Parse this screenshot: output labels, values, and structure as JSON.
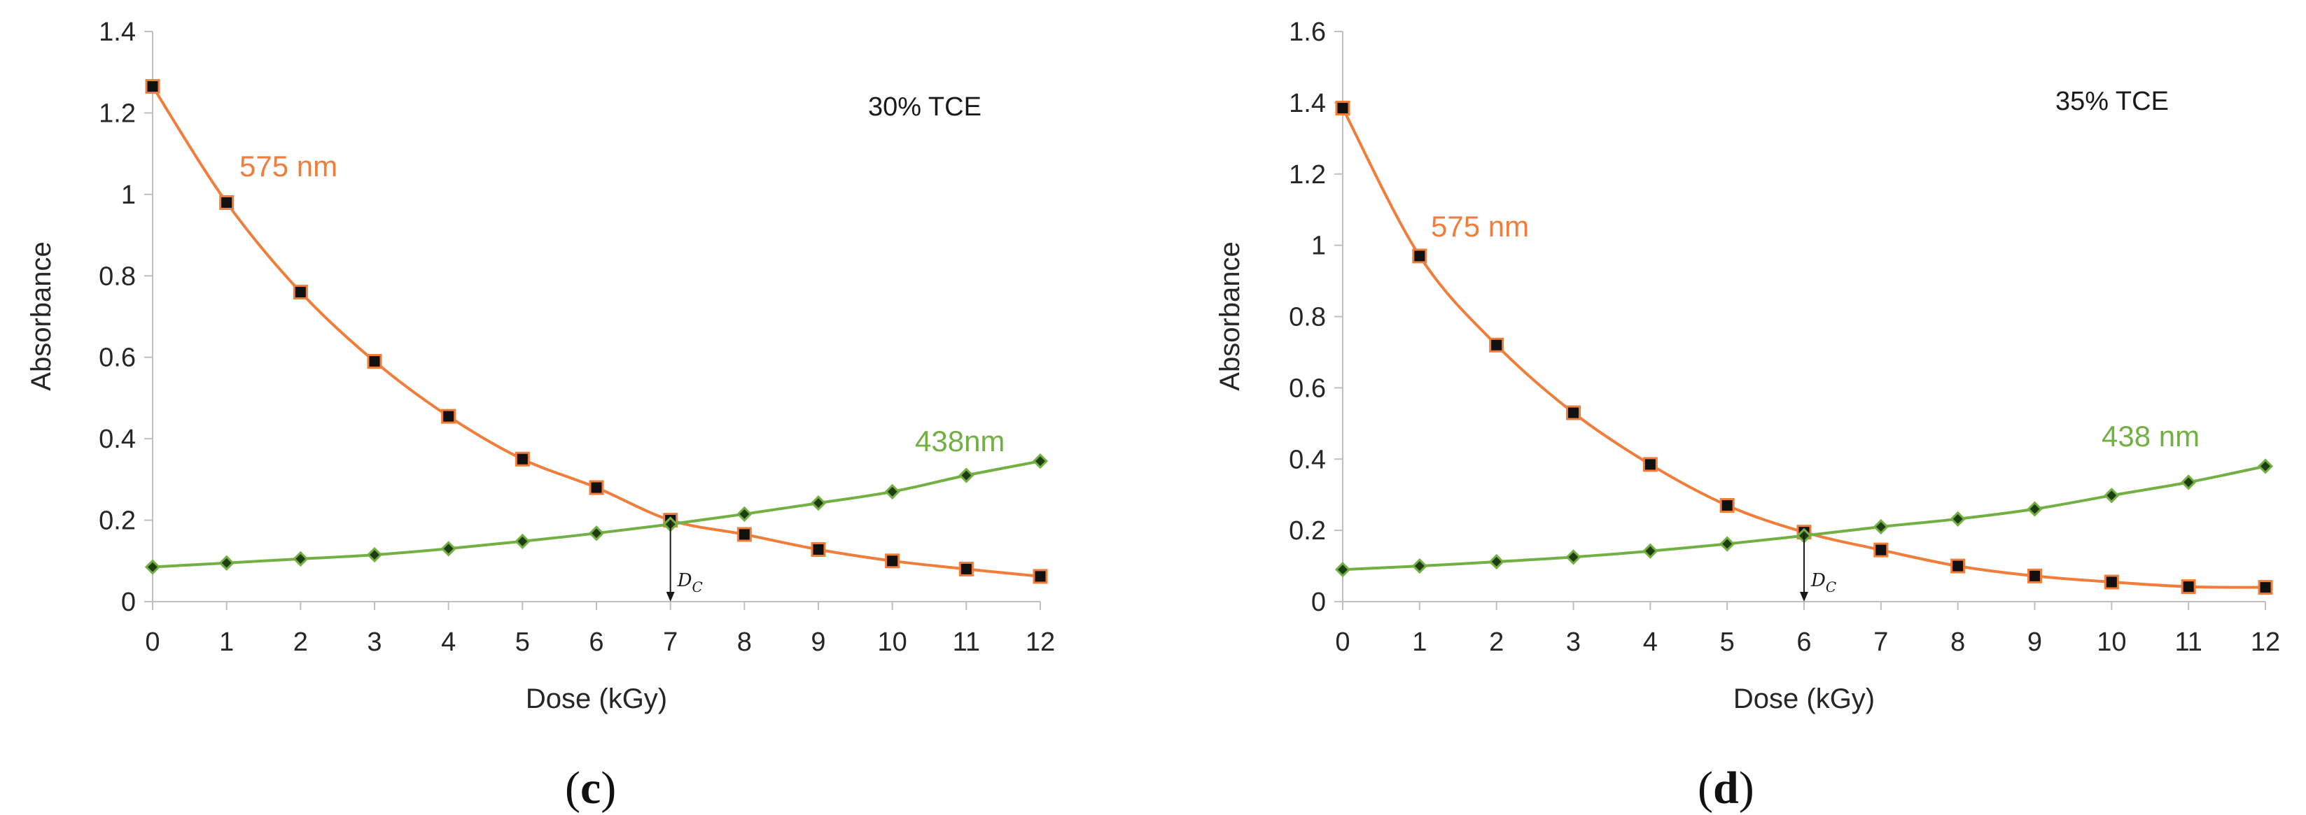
{
  "chart_data": [
    {
      "type": "line",
      "panel_label": "c",
      "annotation": "30% TCE",
      "xlabel": "Dose (kGy)",
      "ylabel": "Absorbance",
      "xlim": [
        0,
        12
      ],
      "ylim": [
        0,
        1.4
      ],
      "x_ticks": [
        0,
        1,
        2,
        3,
        4,
        5,
        6,
        7,
        8,
        9,
        10,
        11,
        12
      ],
      "y_ticks": [
        0,
        0.2,
        0.4,
        0.6,
        0.8,
        1,
        1.2,
        1.4
      ],
      "x_tick_labels": [
        "0",
        "1",
        "2",
        "3",
        "4",
        "5",
        "6",
        "7",
        "8",
        "9",
        "10",
        "11",
        "12"
      ],
      "y_tick_labels": [
        "0",
        "0.2",
        "0.4",
        "0.6",
        "0.8",
        "1",
        "1.2",
        "1.4"
      ],
      "grid": false,
      "x": [
        0,
        1,
        2,
        3,
        4,
        5,
        6,
        7,
        8,
        9,
        10,
        11,
        12
      ],
      "series": [
        {
          "name": "575 nm",
          "label": "575 nm",
          "color": "#f07d3a",
          "marker": "square",
          "values": [
            1.265,
            0.98,
            0.76,
            0.59,
            0.455,
            0.35,
            0.28,
            0.2,
            0.165,
            0.128,
            0.1,
            0.08,
            0.062
          ]
        },
        {
          "name": "438nm",
          "label": "438nm",
          "color": "#72b043",
          "marker": "diamond",
          "values": [
            0.085,
            0.095,
            0.105,
            0.115,
            0.13,
            0.148,
            0.168,
            0.19,
            0.215,
            0.242,
            0.27,
            0.31,
            0.345
          ]
        }
      ],
      "crossover": {
        "label_main": "D",
        "label_sub": "C",
        "x": 7,
        "y": 0.2
      }
    },
    {
      "type": "line",
      "panel_label": "d",
      "annotation": "35% TCE",
      "xlabel": "Dose (kGy)",
      "ylabel": "Absorbance",
      "xlim": [
        0,
        12
      ],
      "ylim": [
        0,
        1.6
      ],
      "x_ticks": [
        0,
        1,
        2,
        3,
        4,
        5,
        6,
        7,
        8,
        9,
        10,
        11,
        12
      ],
      "y_ticks": [
        0,
        0.2,
        0.4,
        0.6,
        0.8,
        1,
        1.2,
        1.4,
        1.6
      ],
      "x_tick_labels": [
        "0",
        "1",
        "2",
        "3",
        "4",
        "5",
        "6",
        "7",
        "8",
        "9",
        "10",
        "11",
        "12"
      ],
      "y_tick_labels": [
        "0",
        "0.2",
        "0.4",
        "0.6",
        "0.8",
        "1",
        "1.2",
        "1.4",
        "1.6"
      ],
      "grid": false,
      "x": [
        0,
        1,
        2,
        3,
        4,
        5,
        6,
        7,
        8,
        9,
        10,
        11,
        12
      ],
      "series": [
        {
          "name": "575 nm",
          "label": "575 nm",
          "color": "#f07d3a",
          "marker": "square",
          "values": [
            1.385,
            0.97,
            0.72,
            0.53,
            0.385,
            0.27,
            0.195,
            0.145,
            0.1,
            0.072,
            0.055,
            0.042,
            0.04
          ]
        },
        {
          "name": "438 nm",
          "label": "438 nm",
          "color": "#72b043",
          "marker": "diamond",
          "values": [
            0.09,
            0.1,
            0.112,
            0.125,
            0.142,
            0.162,
            0.185,
            0.21,
            0.232,
            0.26,
            0.298,
            0.335,
            0.38
          ]
        }
      ],
      "crossover": {
        "label_main": "D",
        "label_sub": "C",
        "x": 6,
        "y": 0.19
      }
    }
  ]
}
